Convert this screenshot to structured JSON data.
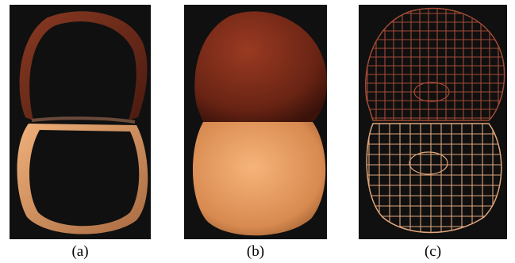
{
  "captions": {
    "a": "(a)",
    "b": "(b)",
    "c": "(c)"
  },
  "colors": {
    "background": "#101010",
    "upper_surface": "#7a2a18",
    "lower_surface": "#e89a5c",
    "wire_upper": "#a24a34",
    "wire_lower": "#e0a57a"
  }
}
